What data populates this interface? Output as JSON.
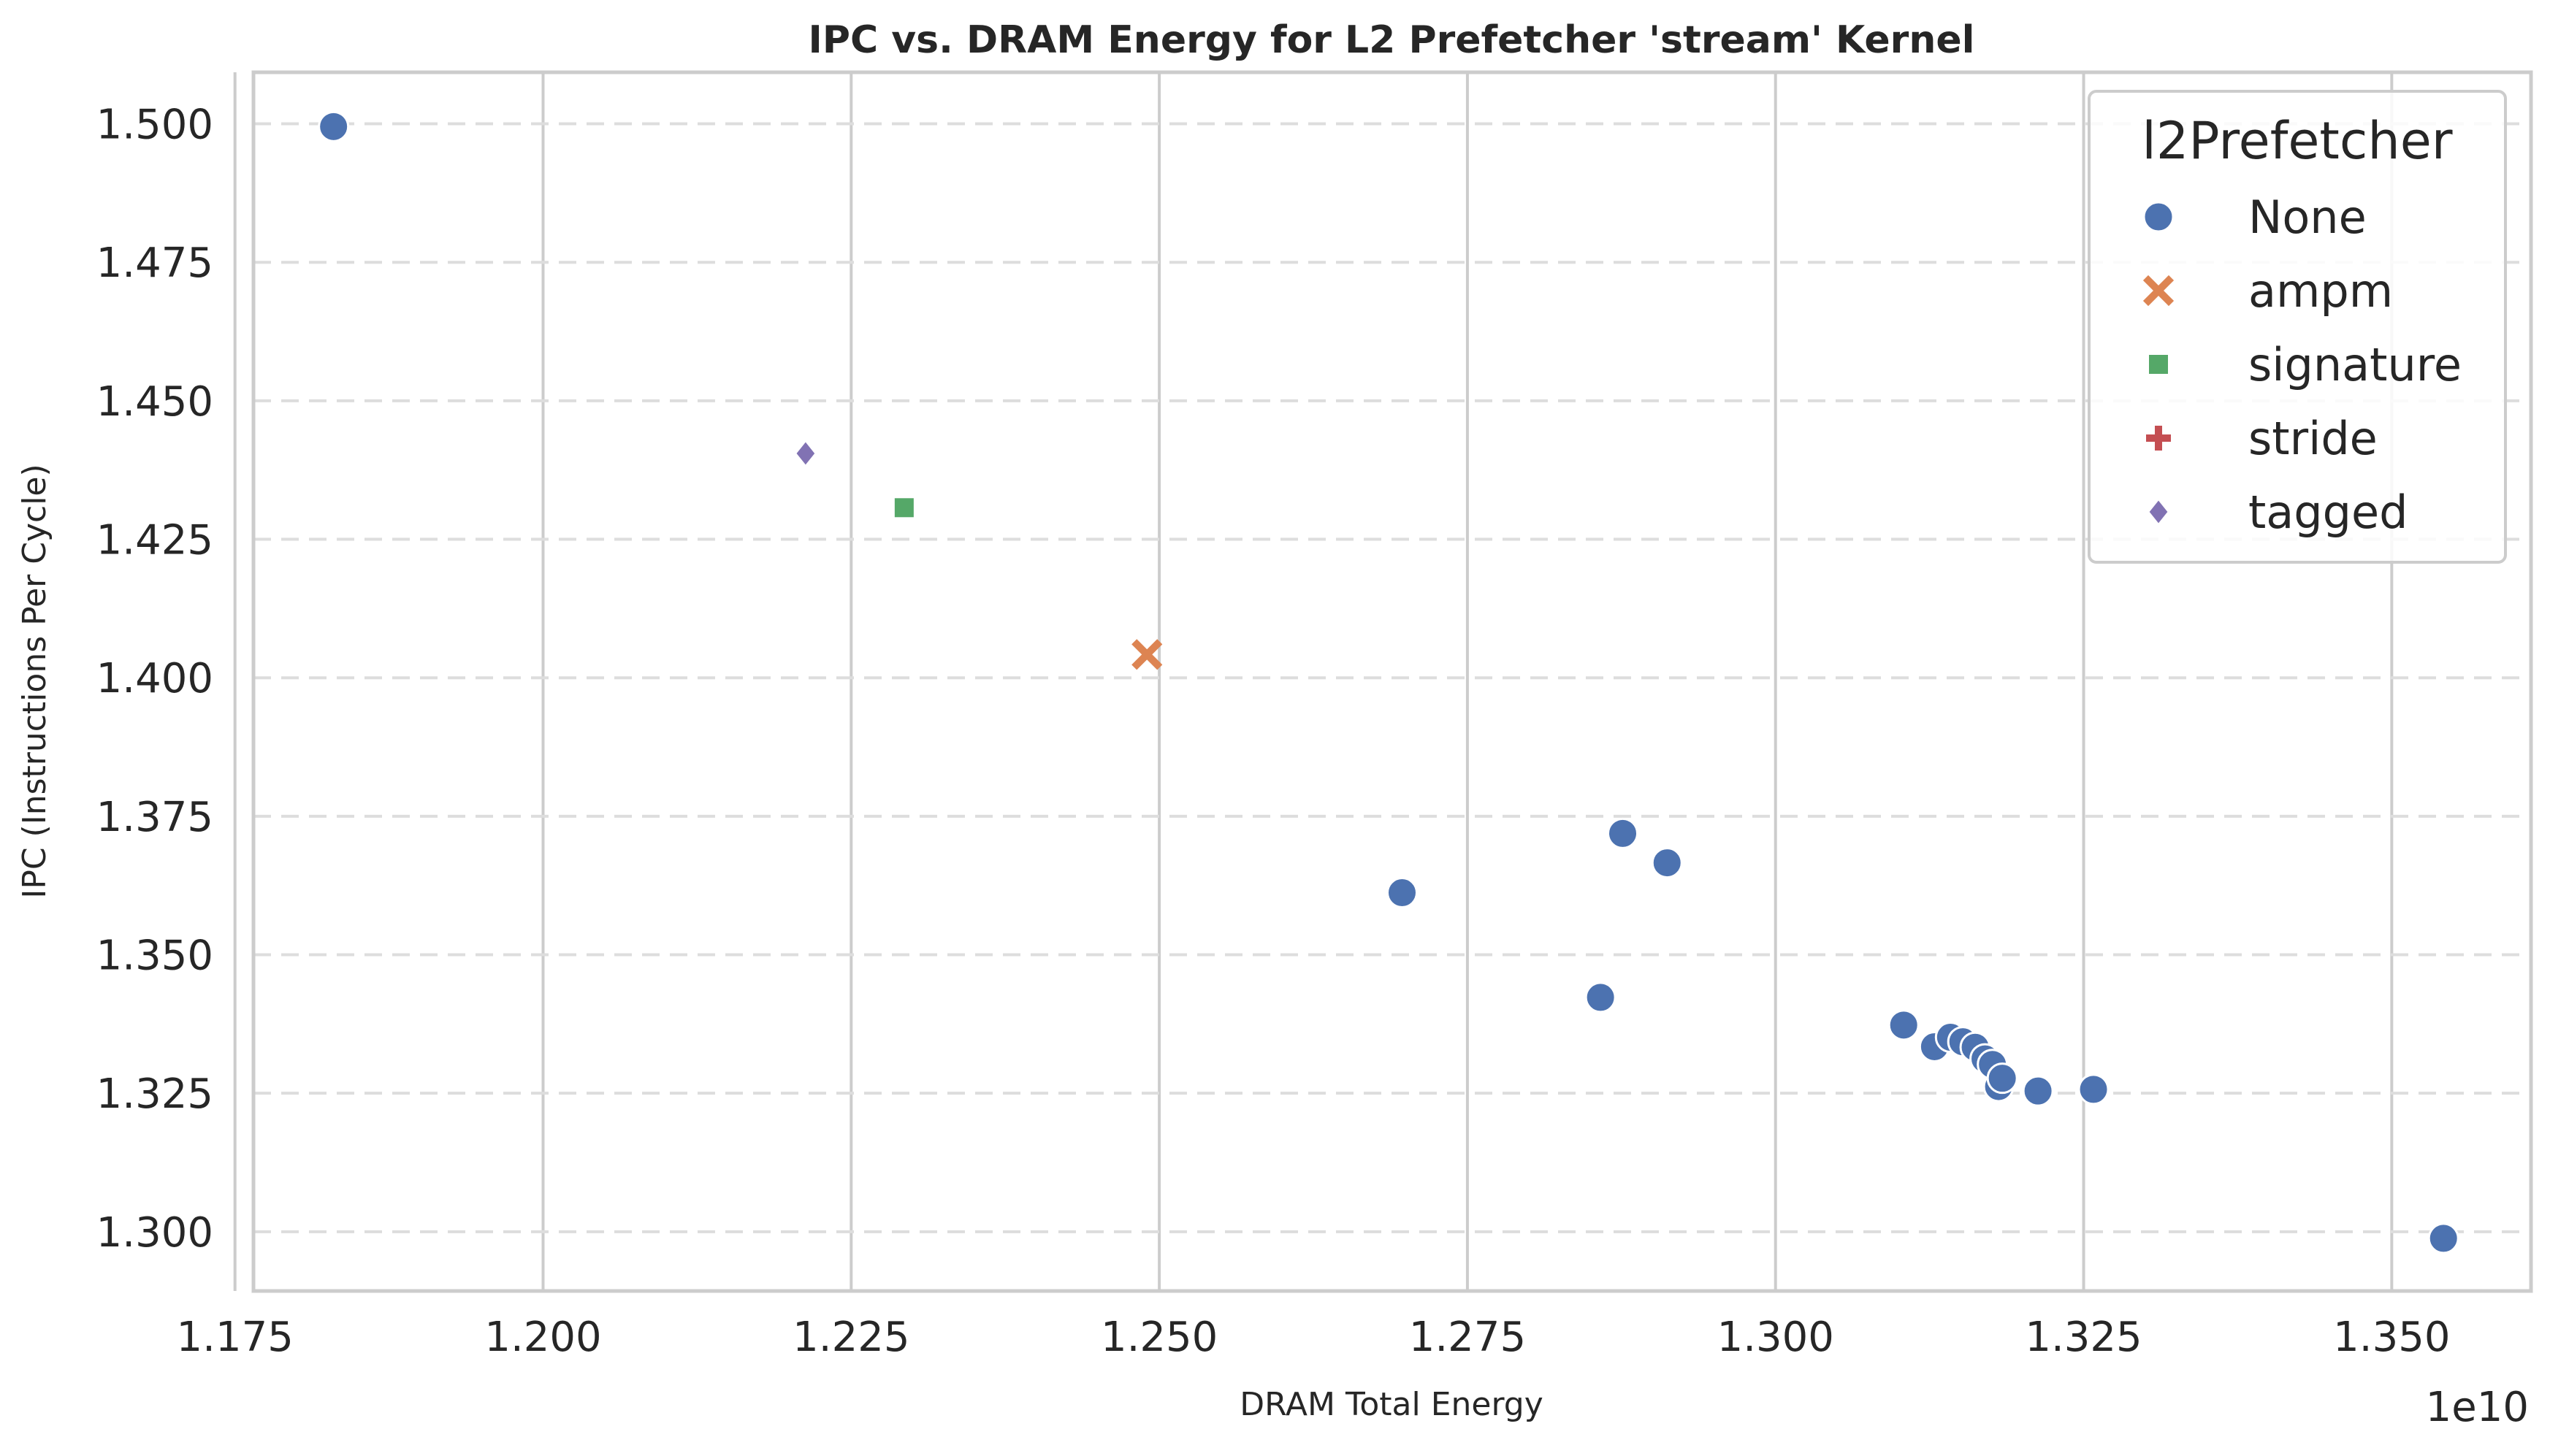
{
  "chart_data": {
    "type": "scatter",
    "title": "IPC vs. DRAM Energy for L2 Prefetcher 'stream' Kernel",
    "xlabel": "DRAM Total Energy",
    "ylabel": "IPC (Instructions Per Cycle)",
    "x_offset_label": "1e10",
    "xlim": [
      1.1765,
      1.3613
    ],
    "ylim": [
      1.2893,
      1.5093
    ],
    "x_ticks": [
      "1.175",
      "1.200",
      "1.225",
      "1.250",
      "1.275",
      "1.300",
      "1.325",
      "1.350"
    ],
    "x_tick_values": [
      1.175,
      1.2,
      1.225,
      1.25,
      1.275,
      1.3,
      1.325,
      1.35
    ],
    "y_ticks": [
      "1.300",
      "1.325",
      "1.350",
      "1.375",
      "1.400",
      "1.425",
      "1.450",
      "1.475",
      "1.500"
    ],
    "y_tick_values": [
      1.3,
      1.325,
      1.35,
      1.375,
      1.4,
      1.425,
      1.45,
      1.475,
      1.5
    ],
    "grid": true,
    "legend": {
      "title": "l2Prefetcher",
      "position": "top-right"
    },
    "series": [
      {
        "name": "None",
        "marker": "circle",
        "color": "#4c72b0",
        "points": [
          {
            "x": 1.183,
            "y": 1.4995
          },
          {
            "x": 1.2697,
            "y": 1.3612
          },
          {
            "x": 1.2858,
            "y": 1.3423
          },
          {
            "x": 1.2876,
            "y": 1.3719
          },
          {
            "x": 1.2912,
            "y": 1.3666
          },
          {
            "x": 1.3104,
            "y": 1.3373
          },
          {
            "x": 1.3129,
            "y": 1.3334
          },
          {
            "x": 1.3142,
            "y": 1.3351
          },
          {
            "x": 1.3152,
            "y": 1.3343
          },
          {
            "x": 1.3162,
            "y": 1.3333
          },
          {
            "x": 1.317,
            "y": 1.3312
          },
          {
            "x": 1.3176,
            "y": 1.3302
          },
          {
            "x": 1.3181,
            "y": 1.3262
          },
          {
            "x": 1.3184,
            "y": 1.3277
          },
          {
            "x": 1.3213,
            "y": 1.3254
          },
          {
            "x": 1.3258,
            "y": 1.3257
          },
          {
            "x": 1.3542,
            "y": 1.2988
          }
        ]
      },
      {
        "name": "ampm",
        "marker": "x",
        "color": "#dd8452",
        "points": [
          {
            "x": 1.249,
            "y": 1.4042
          }
        ]
      },
      {
        "name": "signature",
        "marker": "square",
        "color": "#55a868",
        "points": [
          {
            "x": 1.2293,
            "y": 1.4307
          }
        ]
      },
      {
        "name": "stride",
        "marker": "plus",
        "color": "#c44e52",
        "points": []
      },
      {
        "name": "tagged",
        "marker": "diamond",
        "color": "#8172b3",
        "points": [
          {
            "x": 1.2213,
            "y": 1.4405
          }
        ]
      }
    ]
  }
}
